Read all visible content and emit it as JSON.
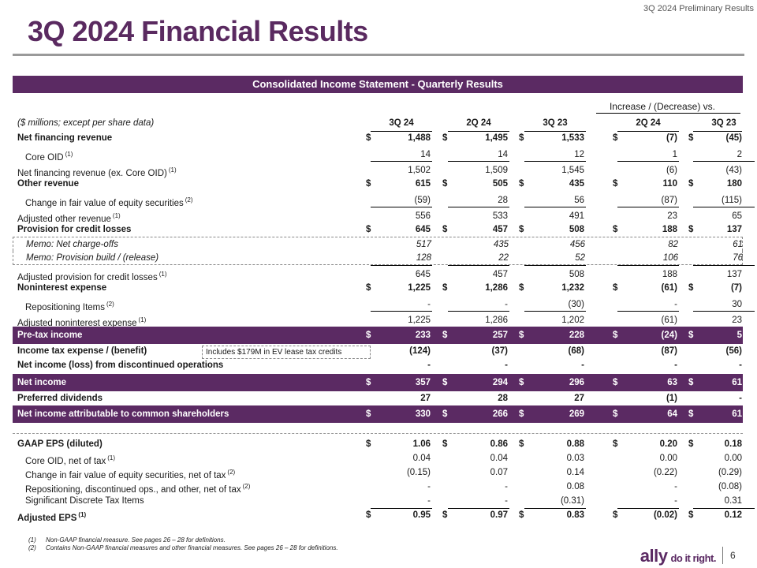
{
  "header": {
    "preliminary": "3Q 2024 Preliminary Results",
    "title": "3Q 2024 Financial Results"
  },
  "table": {
    "banner": "Consolidated Income Statement - Quarterly Results",
    "increase_label": "Increase / (Decrease) vs.",
    "units_label": "($ millions; except per share data)",
    "columns": [
      "3Q 24",
      "2Q 24",
      "3Q 23",
      "2Q 24",
      "3Q 23"
    ],
    "rows": [
      {
        "label": "Net financing revenue",
        "sup": "",
        "cells": [
          "1,488",
          "1,495",
          "1,533",
          "(7)",
          "(45)"
        ]
      },
      {
        "label": "Core OID",
        "sup": "(1)",
        "cells": [
          "14",
          "14",
          "12",
          "1",
          "2"
        ]
      },
      {
        "label": "Net financing revenue (ex. Core OID)",
        "sup": "(1)",
        "cells": [
          "1,502",
          "1,509",
          "1,545",
          "(6)",
          "(43)"
        ]
      },
      {
        "label": "Other revenue",
        "sup": "",
        "cells": [
          "615",
          "505",
          "435",
          "110",
          "180"
        ]
      },
      {
        "label": "Change in fair value of equity securities",
        "sup": "(2)",
        "cells": [
          "(59)",
          "28",
          "56",
          "(87)",
          "(115)"
        ]
      },
      {
        "label": "Adjusted other revenue",
        "sup": "(1)",
        "cells": [
          "556",
          "533",
          "491",
          "23",
          "65"
        ]
      },
      {
        "label": "Provision for credit losses",
        "sup": "",
        "cells": [
          "645",
          "457",
          "508",
          "188",
          "137"
        ]
      },
      {
        "label": "Memo: Net charge-offs",
        "sup": "",
        "cells": [
          "517",
          "435",
          "456",
          "82",
          "61"
        ]
      },
      {
        "label": "Memo: Provision build / (release)",
        "sup": "",
        "cells": [
          "128",
          "22",
          "52",
          "106",
          "76"
        ]
      },
      {
        "label": "Adjusted provision for credit losses",
        "sup": "(1)",
        "cells": [
          "645",
          "457",
          "508",
          "188",
          "137"
        ]
      },
      {
        "label": "Noninterest expense",
        "sup": "",
        "cells": [
          "1,225",
          "1,286",
          "1,232",
          "(61)",
          "(7)"
        ]
      },
      {
        "label": "Repositioning Items",
        "sup": "(2)",
        "cells": [
          "-",
          "-",
          "(30)",
          "-",
          "30"
        ]
      },
      {
        "label": "Adjusted noninterest expense",
        "sup": "(1)",
        "cells": [
          "1,225",
          "1,286",
          "1,202",
          "(61)",
          "23"
        ]
      },
      {
        "label": "Pre-tax income",
        "sup": "",
        "cells": [
          "233",
          "257",
          "228",
          "(24)",
          "5"
        ]
      },
      {
        "label": "Income tax expense / (benefit)",
        "sup": "",
        "note": "Includes $179M in EV lease tax credits",
        "cells": [
          "(124)",
          "(37)",
          "(68)",
          "(87)",
          "(56)"
        ]
      },
      {
        "label": "Net income (loss) from discontinued operations",
        "sup": "",
        "cells": [
          "-",
          "-",
          "-",
          "-",
          "-"
        ]
      },
      {
        "label": "Net income",
        "sup": "",
        "cells": [
          "357",
          "294",
          "296",
          "63",
          "61"
        ]
      },
      {
        "label": "Preferred dividends",
        "sup": "",
        "cells": [
          "27",
          "28",
          "27",
          "(1)",
          "-"
        ]
      },
      {
        "label": "Net income attributable to common shareholders",
        "sup": "",
        "cells": [
          "330",
          "266",
          "269",
          "64",
          "61"
        ]
      },
      {
        "label": "GAAP EPS (diluted)",
        "sup": "",
        "cells": [
          "1.06",
          "0.86",
          "0.88",
          "0.20",
          "0.18"
        ]
      },
      {
        "label": "Core OID, net of tax",
        "sup": "(1)",
        "cells": [
          "0.04",
          "0.04",
          "0.03",
          "0.00",
          "0.00"
        ]
      },
      {
        "label": "Change in fair value of equity securities, net of tax",
        "sup": "(2)",
        "cells": [
          "(0.15)",
          "0.07",
          "0.14",
          "(0.22)",
          "(0.29)"
        ]
      },
      {
        "label": "Repositioning, discontinued ops., and other, net of tax",
        "sup": "(2)",
        "cells": [
          "-",
          "-",
          "0.08",
          "-",
          "(0.08)"
        ]
      },
      {
        "label": "Significant Discrete Tax Items",
        "sup": "",
        "cells": [
          "-",
          "-",
          "(0.31)",
          "-",
          "0.31"
        ]
      },
      {
        "label": "Adjusted EPS",
        "sup": "(1)",
        "cells": [
          "0.95",
          "0.97",
          "0.83",
          "(0.02)",
          "0.12"
        ]
      }
    ],
    "dollar_sign": "$"
  },
  "footnotes": [
    {
      "num": "(1)",
      "text": "Non-GAAP financial measure. See pages 26 – 28 for definitions."
    },
    {
      "num": "(2)",
      "text": "Contains Non-GAAP financial measures and other financial measures. See pages 26 – 28 for definitions."
    }
  ],
  "footer": {
    "logo": "ally",
    "tagline": "do it right.",
    "page_number": "6"
  }
}
